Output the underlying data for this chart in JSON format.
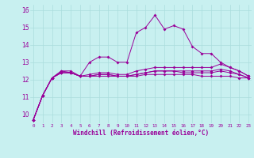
{
  "xlabel": "Windchill (Refroidissement éolien,°C)",
  "background_color": "#c8f0f0",
  "line_color": "#990099",
  "grid_color": "#aadddd",
  "xlim": [
    -0.3,
    23.3
  ],
  "ylim": [
    9.5,
    16.3
  ],
  "xticks": [
    0,
    1,
    2,
    3,
    4,
    5,
    6,
    7,
    8,
    9,
    10,
    11,
    12,
    13,
    14,
    15,
    16,
    17,
    18,
    19,
    20,
    21,
    22,
    23
  ],
  "yticks": [
    10,
    11,
    12,
    13,
    14,
    15,
    16
  ],
  "series": [
    [
      9.7,
      11.1,
      12.1,
      12.5,
      12.5,
      12.2,
      13.0,
      13.3,
      13.3,
      13.0,
      13.0,
      14.7,
      15.0,
      15.7,
      14.9,
      15.1,
      14.9,
      13.9,
      13.5,
      13.5,
      13.0,
      12.7,
      12.5,
      12.2
    ],
    [
      9.7,
      11.1,
      12.1,
      12.5,
      12.4,
      12.2,
      12.3,
      12.4,
      12.4,
      12.3,
      12.3,
      12.5,
      12.6,
      12.7,
      12.7,
      12.7,
      12.7,
      12.7,
      12.7,
      12.7,
      12.9,
      12.7,
      12.5,
      12.2
    ],
    [
      9.7,
      11.1,
      12.1,
      12.4,
      12.4,
      12.2,
      12.2,
      12.3,
      12.3,
      12.2,
      12.2,
      12.3,
      12.4,
      12.5,
      12.5,
      12.5,
      12.5,
      12.5,
      12.5,
      12.5,
      12.6,
      12.5,
      12.3,
      12.1
    ],
    [
      9.7,
      11.1,
      12.1,
      12.4,
      12.4,
      12.2,
      12.2,
      12.2,
      12.2,
      12.2,
      12.2,
      12.2,
      12.3,
      12.3,
      12.3,
      12.3,
      12.3,
      12.3,
      12.2,
      12.2,
      12.2,
      12.2,
      12.1,
      12.1
    ],
    [
      9.7,
      11.1,
      12.1,
      12.4,
      12.4,
      12.2,
      12.2,
      12.3,
      12.3,
      12.2,
      12.2,
      12.3,
      12.4,
      12.5,
      12.5,
      12.5,
      12.4,
      12.4,
      12.4,
      12.4,
      12.5,
      12.4,
      12.3,
      12.1
    ]
  ],
  "xlabel_fontsize": 5.5,
  "xtick_fontsize": 4.2,
  "ytick_fontsize": 5.5,
  "linewidth": 0.7,
  "markersize": 2.0
}
